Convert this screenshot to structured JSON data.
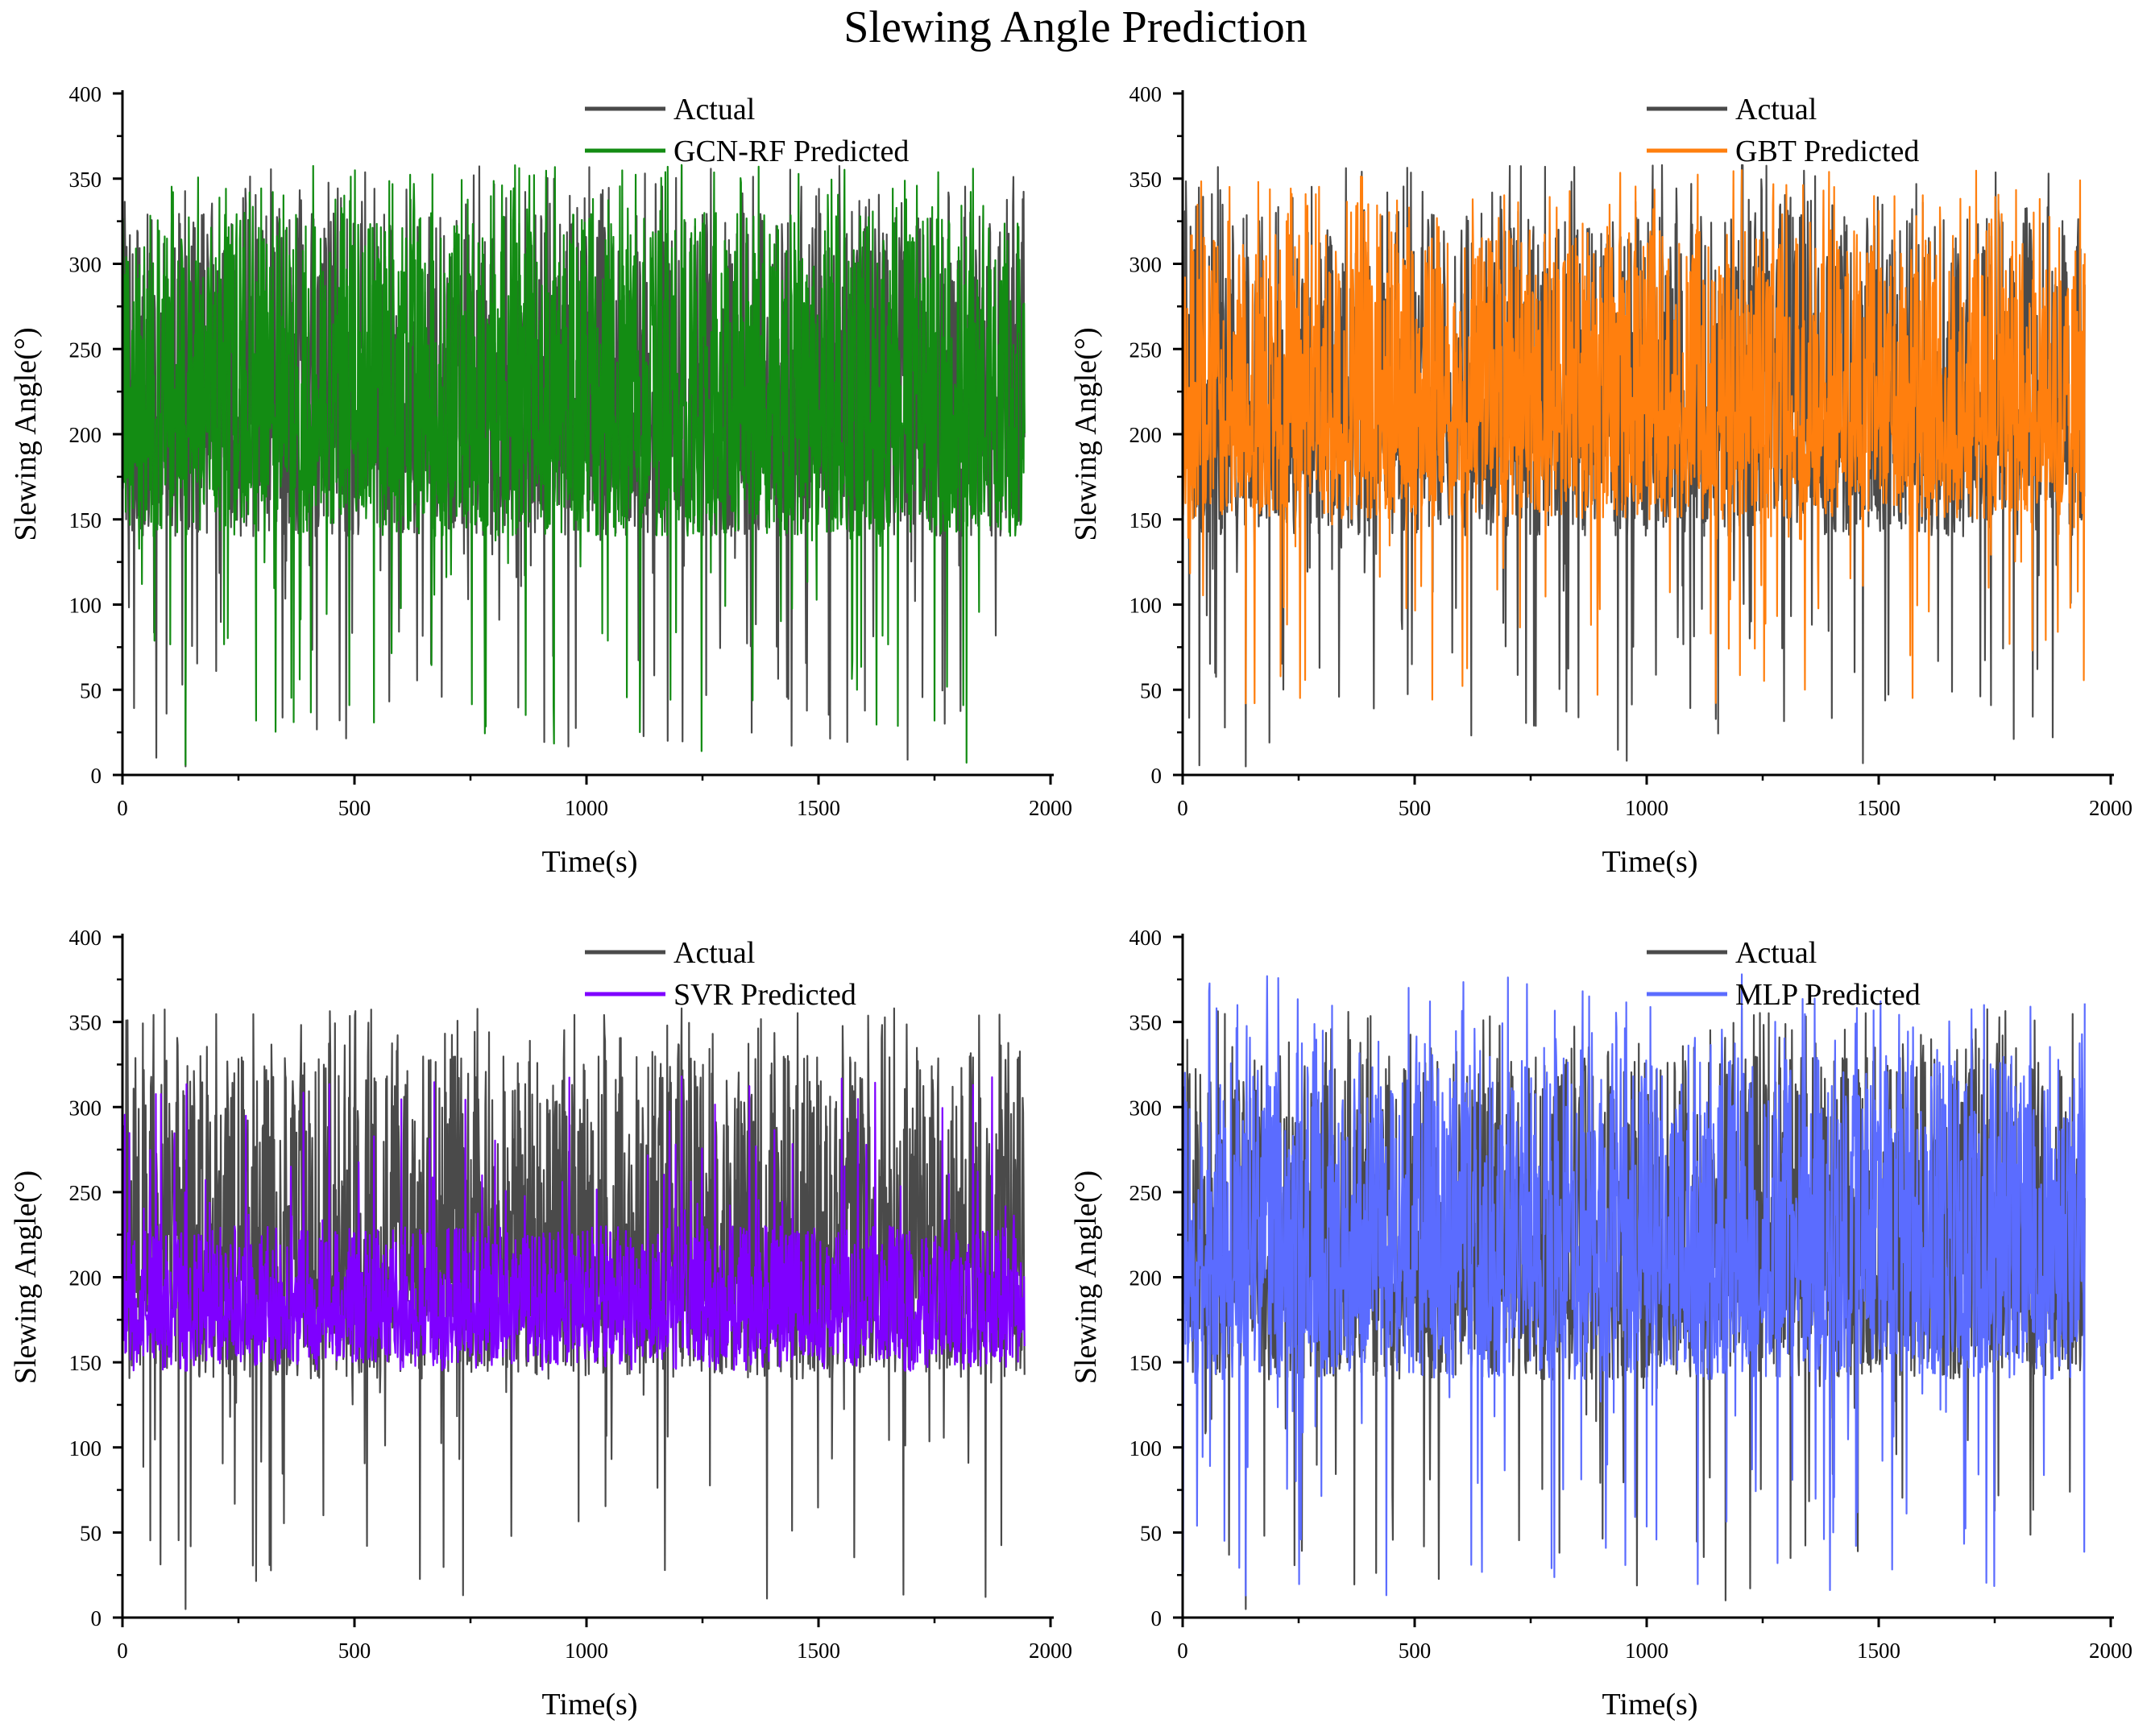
{
  "title": "Slewing Angle Prediction",
  "chart_data": [
    {
      "type": "line",
      "xlabel": "Time(s)",
      "ylabel": "Slewing Angle(°)",
      "xlim": [
        0,
        2000
      ],
      "ylim": [
        0,
        400
      ],
      "xticks": [
        0,
        500,
        1000,
        1500,
        2000
      ],
      "yticks": [
        0,
        50,
        100,
        150,
        200,
        250,
        300,
        350,
        400
      ],
      "legend_position": "top-center",
      "series": [
        {
          "name": "Actual",
          "color": "#4a4a4a",
          "n_points": 1945,
          "band": [
            140,
            330
          ],
          "range_min": 5,
          "range_max": 358
        },
        {
          "name": "GCN-RF Predicted",
          "color": "#138c13",
          "n_points": 1945,
          "band": [
            140,
            330
          ],
          "range_min": 6,
          "range_max": 358
        }
      ]
    },
    {
      "type": "line",
      "xlabel": "Time(s)",
      "ylabel": "Slewing Angle(°)",
      "xlim": [
        0,
        2000
      ],
      "ylim": [
        0,
        400
      ],
      "xticks": [
        0,
        500,
        1000,
        1500,
        2000
      ],
      "yticks": [
        0,
        50,
        100,
        150,
        200,
        250,
        300,
        350,
        400
      ],
      "legend_position": "top-center",
      "series": [
        {
          "name": "Actual",
          "color": "#4a4a4a",
          "n_points": 1945,
          "band": [
            140,
            330
          ],
          "range_min": 5,
          "range_max": 358
        },
        {
          "name": "GBT Predicted",
          "color": "#ff7f0e",
          "n_points": 1945,
          "band": [
            150,
            320
          ],
          "range_min": 42,
          "range_max": 355
        }
      ]
    },
    {
      "type": "line",
      "xlabel": "Time(s)",
      "ylabel": "Slewing Angle(°)",
      "xlim": [
        0,
        2000
      ],
      "ylim": [
        0,
        400
      ],
      "xticks": [
        0,
        500,
        1000,
        1500,
        2000
      ],
      "yticks": [
        0,
        50,
        100,
        150,
        200,
        250,
        300,
        350,
        400
      ],
      "legend_position": "top-center",
      "series": [
        {
          "name": "Actual",
          "color": "#4a4a4a",
          "n_points": 1945,
          "band": [
            140,
            330
          ],
          "range_min": 5,
          "range_max": 358
        },
        {
          "name": "SVR Predicted",
          "color": "#7f00ff",
          "n_points": 1945,
          "band": [
            150,
            230
          ],
          "range_min": 145,
          "range_max": 318
        }
      ]
    },
    {
      "type": "line",
      "xlabel": "Time(s)",
      "ylabel": "Slewing Angle(°)",
      "xlim": [
        0,
        2000
      ],
      "ylim": [
        0,
        400
      ],
      "xticks": [
        0,
        500,
        1000,
        1500,
        2000
      ],
      "yticks": [
        0,
        50,
        100,
        150,
        200,
        250,
        300,
        350,
        400
      ],
      "legend_position": "top-center",
      "series": [
        {
          "name": "Actual",
          "color": "#4a4a4a",
          "n_points": 1945,
          "band": [
            140,
            330
          ],
          "range_min": 5,
          "range_max": 358
        },
        {
          "name": "MLP Predicted",
          "color": "#5b6cff",
          "n_points": 1945,
          "band": [
            140,
            330
          ],
          "range_min": 13,
          "range_max": 378
        }
      ]
    }
  ]
}
